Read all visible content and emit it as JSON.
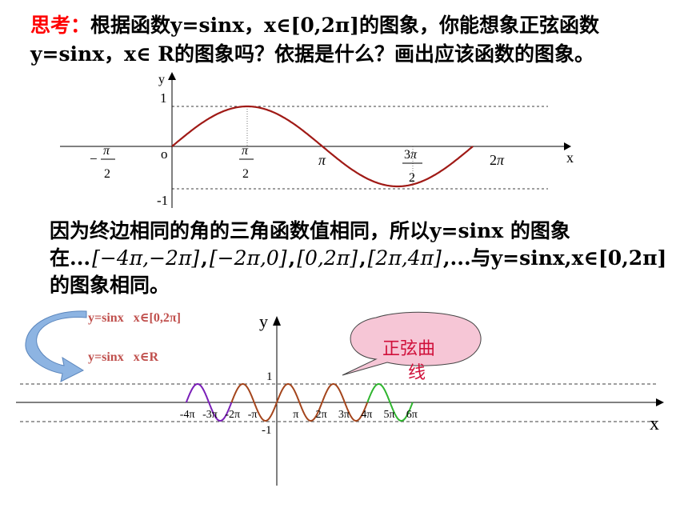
{
  "question": {
    "label": "思考：",
    "text_line1": "根据函数y=sinx，x∈[0,2π]的图象，你能想象正弦函数",
    "text_line2": "y=sinx，x∈ R的图象吗？依据是什么？画出应该函数的图象。"
  },
  "chart_data": [
    {
      "type": "line",
      "function": "y=sin(x)",
      "x_range": [
        0,
        6.2832
      ],
      "xlim": [
        -2.0,
        7.9
      ],
      "ylim": [
        -1,
        1
      ],
      "x_ticks": [
        "-π/2",
        "π/2",
        "π",
        "3π/2",
        "2π"
      ],
      "y_ticks": [
        "1",
        "-1"
      ],
      "axis_labels": {
        "x": "x",
        "y": "y",
        "origin": "o"
      },
      "grid": false,
      "dashed_reference_lines": [
        1,
        -1
      ],
      "color": "#a01a16"
    },
    {
      "type": "line",
      "function": "y=sin(x)",
      "xlim": [
        -12.6,
        19.5
      ],
      "ylim": [
        -1,
        1
      ],
      "x_ticks": [
        "-4π",
        "-3π",
        "-2π",
        "-π",
        "π",
        "2π",
        "3π",
        "4π",
        "5π",
        "6π"
      ],
      "y_ticks": [
        "1",
        "-1"
      ],
      "axis_labels": {
        "x": "x",
        "y": "y"
      },
      "series": [
        {
          "range": [
            -12.566,
            -6.283
          ],
          "color": "#7a1fb8"
        },
        {
          "range": [
            -6.283,
            12.566
          ],
          "color": "#a4451c"
        },
        {
          "range": [
            12.566,
            18.85
          ],
          "color": "#2fb52f"
        }
      ],
      "legend": [
        "y=sinx   x∈[0,2π]",
        "y=sinx   x∈R"
      ],
      "callout": "正弦曲线"
    }
  ],
  "paragraph": {
    "line1": "因为终边相同的角的三角函数值相同，所以y=sinx 的图象",
    "line2_prefix": "在...",
    "intervals": [
      "[−4π,−2π]",
      "[−2π,0]",
      "[0,2π]",
      "[2π,4π]"
    ],
    "sep": ",",
    "line2_suffix": "...与y=sinx,x∈[0,2π]",
    "line3": "的图象相同。"
  },
  "colors": {
    "label_red": "#ff0000",
    "curve": "#a01a16",
    "legend_text": "#c0504d",
    "callout_fill": "#f6c6d6",
    "callout_text": "#d0103a",
    "arrow_fill": "#8db4e2"
  }
}
